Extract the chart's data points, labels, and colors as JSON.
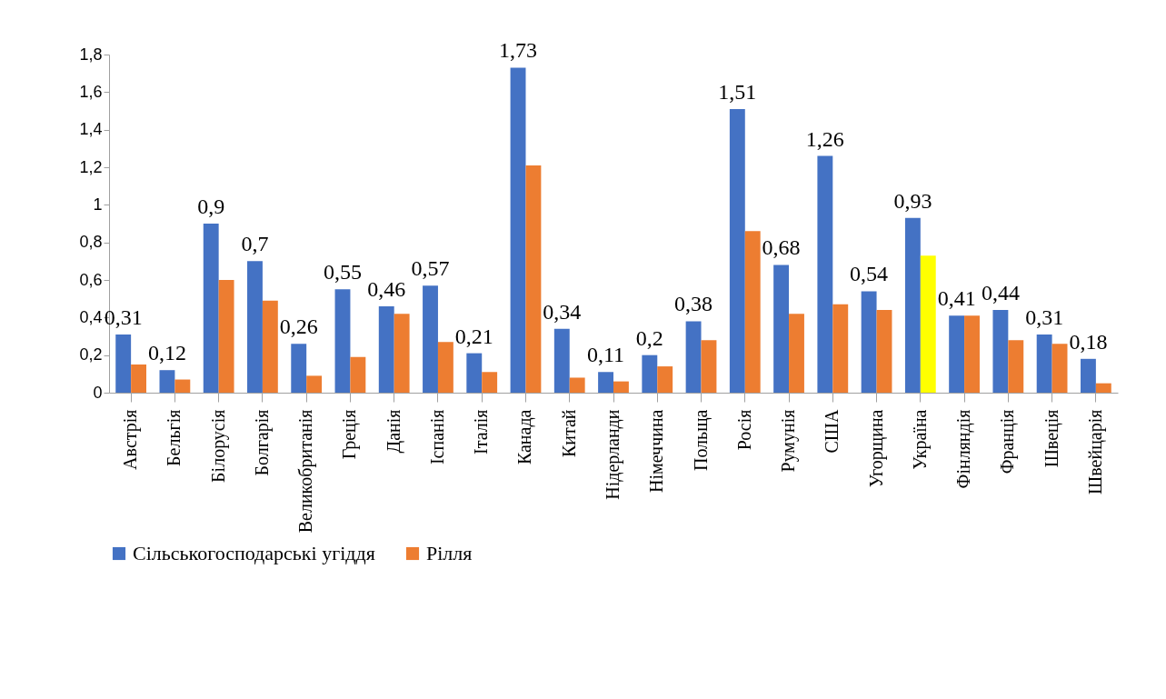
{
  "chart_data": {
    "type": "bar",
    "categories": [
      "Австрія",
      "Бельгія",
      "Білорусія",
      "Болгарія",
      "Великобританія",
      "Греція",
      "Данія",
      "Іспанія",
      "Італія",
      "Канада",
      "Китай",
      "Нідерланди",
      "Німеччина",
      "Польща",
      "Росія",
      "Румунія",
      "США",
      "Угорщина",
      "Україна",
      "Фінляндія",
      "Франція",
      "Швеція",
      "Швейцарія"
    ],
    "series": [
      {
        "name": "Сільськогосподарські угіддя",
        "color": "#4472c4",
        "values": [
          0.31,
          0.12,
          0.9,
          0.7,
          0.26,
          0.55,
          0.46,
          0.57,
          0.21,
          1.73,
          0.34,
          0.11,
          0.2,
          0.38,
          1.51,
          0.68,
          1.26,
          0.54,
          0.93,
          0.41,
          0.44,
          0.31,
          0.18
        ],
        "value_labels": [
          "0,31",
          "0,12",
          "0,9",
          "0,7",
          "0,26",
          "0,55",
          "0,46",
          "0,57",
          "0,21",
          "1,73",
          "0,34",
          "0,11",
          "0,2",
          "0,38",
          "1,51",
          "0,68",
          "1,26",
          "0,54",
          "0,93",
          "0,41",
          "0,44",
          "0,31",
          "0,18"
        ]
      },
      {
        "name": "Рілля",
        "color": "#ed7d31",
        "colors": [
          "#ed7d31",
          "#ed7d31",
          "#ed7d31",
          "#ed7d31",
          "#ed7d31",
          "#ed7d31",
          "#ed7d31",
          "#ed7d31",
          "#ed7d31",
          "#ed7d31",
          "#ed7d31",
          "#ed7d31",
          "#ed7d31",
          "#ed7d31",
          "#ed7d31",
          "#ed7d31",
          "#ed7d31",
          "#ed7d31",
          "#ffff00",
          "#ed7d31",
          "#ed7d31",
          "#ed7d31",
          "#ed7d31"
        ],
        "values": [
          0.15,
          0.07,
          0.6,
          0.49,
          0.09,
          0.19,
          0.42,
          0.27,
          0.11,
          1.21,
          0.08,
          0.06,
          0.14,
          0.28,
          0.86,
          0.42,
          0.47,
          0.44,
          0.73,
          0.41,
          0.28,
          0.26,
          0.05
        ]
      }
    ],
    "ylim": [
      0,
      1.8
    ],
    "yticks": [
      0,
      {
        "value": 0.2,
        "label": "0,2"
      },
      {
        "value": 0.4,
        "label": "0,4"
      },
      {
        "value": 0.6,
        "label": "0,6"
      },
      {
        "value": 0.8,
        "label": "0,8"
      },
      1,
      {
        "value": 1.2,
        "label": "1,2"
      },
      {
        "value": 1.4,
        "label": "1,4"
      },
      {
        "value": 1.6,
        "label": "1,6"
      },
      {
        "value": 1.8,
        "label": "1,8"
      }
    ],
    "legend": "bottom"
  }
}
